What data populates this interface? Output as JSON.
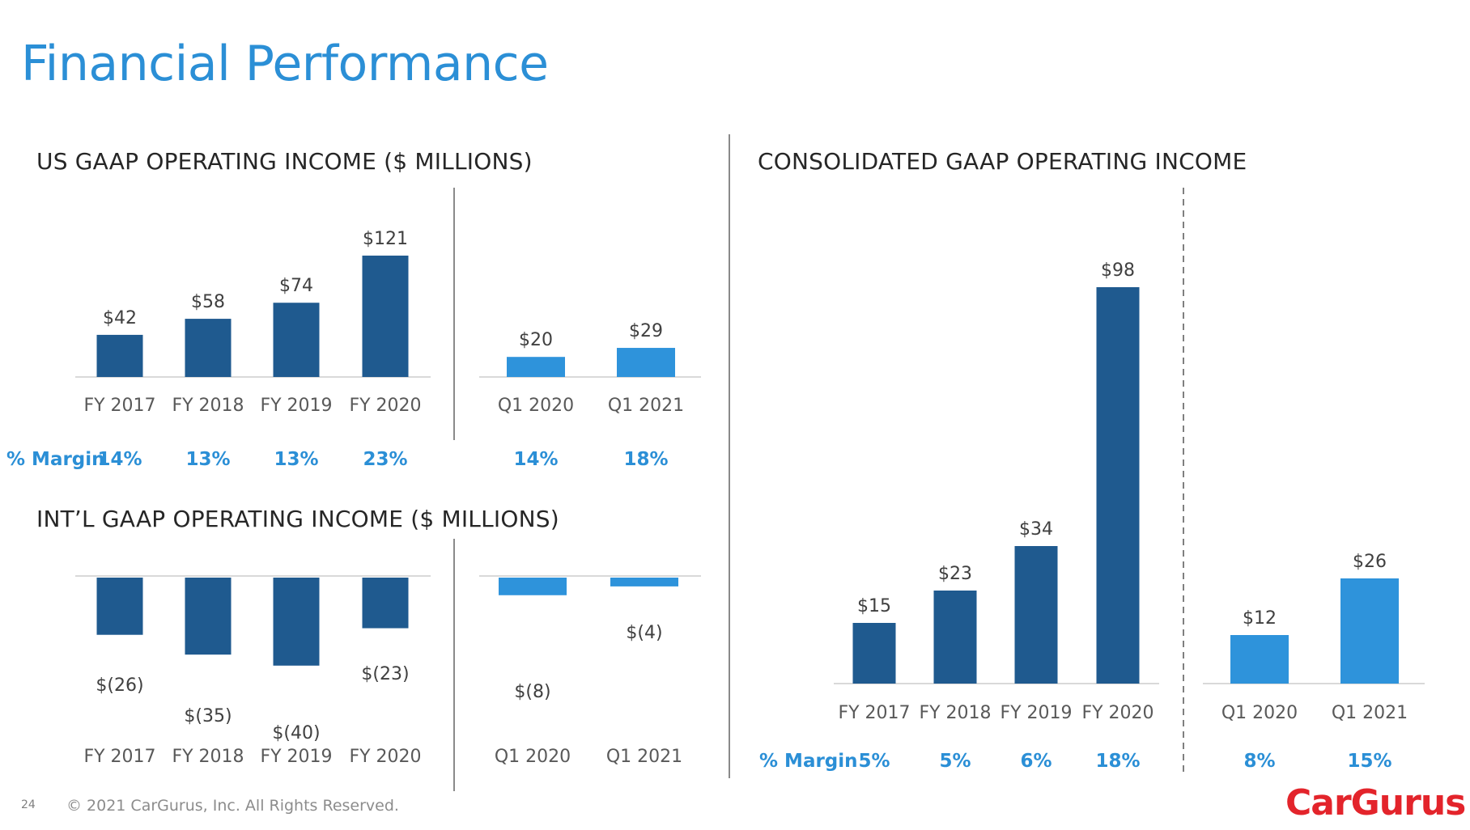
{
  "page": {
    "title": "Financial Performance"
  },
  "colors": {
    "dark": "#1F5A8F",
    "light": "#2E93DB",
    "accent": "#2B8FD6",
    "brand": "#E3242B"
  },
  "labels": {
    "margin": "% Margin"
  },
  "chart_data": [
    {
      "type": "bar",
      "title": "US GAAP OPERATING INCOME ($ MILLIONS)",
      "groups": [
        {
          "categories": [
            "FY 2017",
            "FY 2018",
            "FY 2019",
            "FY 2020"
          ],
          "values": [
            42,
            58,
            74,
            121
          ],
          "labels": [
            "$42",
            "$58",
            "$74",
            "$121"
          ],
          "margins": [
            "14%",
            "13%",
            "13%",
            "23%"
          ],
          "color": "dark"
        },
        {
          "categories": [
            "Q1 2020",
            "Q1 2021"
          ],
          "values": [
            20,
            29
          ],
          "labels": [
            "$20",
            "$29"
          ],
          "margins": [
            "14%",
            "18%"
          ],
          "color": "light"
        }
      ]
    },
    {
      "type": "bar",
      "title": "INT’L GAAP OPERATING INCOME ($ MILLIONS)",
      "groups": [
        {
          "categories": [
            "FY 2017",
            "FY 2018",
            "FY 2019",
            "FY 2020"
          ],
          "values": [
            -26,
            -35,
            -40,
            -23
          ],
          "labels": [
            "$(26)",
            "$(35)",
            "$(40)",
            "$(23)"
          ],
          "color": "dark"
        },
        {
          "categories": [
            "Q1 2020",
            "Q1 2021"
          ],
          "values": [
            -8,
            -4
          ],
          "labels": [
            "$(8)",
            "$(4)"
          ],
          "color": "light"
        }
      ]
    },
    {
      "type": "bar",
      "title": "CONSOLIDATED GAAP OPERATING INCOME",
      "groups": [
        {
          "categories": [
            "FY 2017",
            "FY 2018",
            "FY 2019",
            "FY 2020"
          ],
          "values": [
            15,
            23,
            34,
            98
          ],
          "labels": [
            "$15",
            "$23",
            "$34",
            "$98"
          ],
          "margins": [
            "5%",
            "5%",
            "6%",
            "18%"
          ],
          "color": "dark"
        },
        {
          "categories": [
            "Q1 2020",
            "Q1 2021"
          ],
          "values": [
            12,
            26
          ],
          "labels": [
            "$12",
            "$26"
          ],
          "margins": [
            "8%",
            "15%"
          ],
          "color": "light"
        }
      ]
    }
  ],
  "footer": {
    "page_number": "24",
    "copyright": "© 2021 CarGurus, Inc.  All Rights Reserved.",
    "logo_text": "CarGurus"
  }
}
